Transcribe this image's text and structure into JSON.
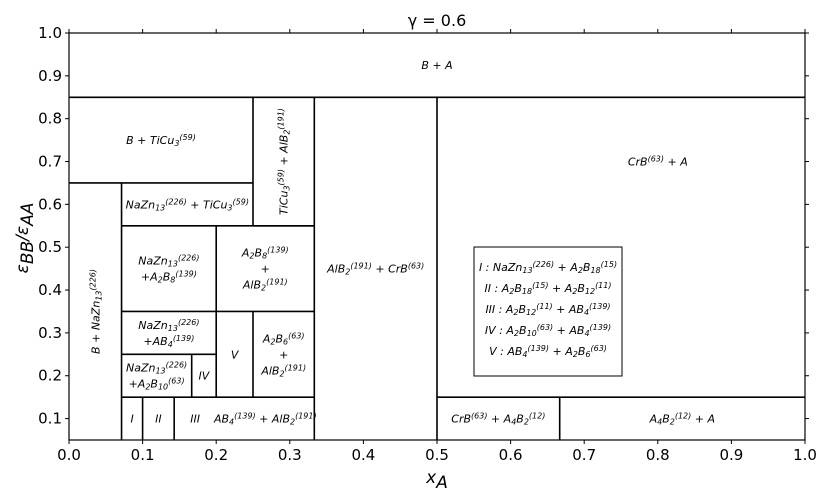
{
  "chart_data": {
    "type": "phase-diagram",
    "title": "γ = 0.6",
    "xlabel": "x_A",
    "ylabel": "ε_BB/ε_AA",
    "xlim": [
      0.0,
      1.0
    ],
    "ylim": [
      0.05,
      1.0
    ],
    "x_ticks": [
      "0.0",
      "0.1",
      "0.2",
      "0.3",
      "0.4",
      "0.5",
      "0.6",
      "0.7",
      "0.8",
      "0.9",
      "1.0"
    ],
    "y_ticks": [
      "0.1",
      "0.2",
      "0.3",
      "0.4",
      "0.5",
      "0.6",
      "0.7",
      "0.8",
      "0.9",
      "1.0"
    ],
    "grid": false,
    "boundaries": [
      {
        "x1": 0.0,
        "y1": 0.85,
        "x2": 1.0,
        "y2": 0.85
      },
      {
        "x1": 0.0,
        "y1": 0.65,
        "x2": 0.25,
        "y2": 0.65
      },
      {
        "x1": 0.25,
        "y1": 0.55,
        "x2": 0.3333,
        "y2": 0.55
      },
      {
        "x1": 0.0714,
        "y1": 0.55,
        "x2": 0.3333,
        "y2": 0.55
      },
      {
        "x1": 0.0714,
        "y1": 0.35,
        "x2": 0.3333,
        "y2": 0.35
      },
      {
        "x1": 0.0714,
        "y1": 0.25,
        "x2": 0.2,
        "y2": 0.25
      },
      {
        "x1": 0.0714,
        "y1": 0.15,
        "x2": 0.3333,
        "y2": 0.15
      },
      {
        "x1": 0.5,
        "y1": 0.15,
        "x2": 1.0,
        "y2": 0.15
      },
      {
        "x1": 0.0714,
        "y1": 0.05,
        "x2": 0.0714,
        "y2": 0.65
      },
      {
        "x1": 0.25,
        "y1": 0.55,
        "x2": 0.25,
        "y2": 0.85
      },
      {
        "x1": 0.3333,
        "y1": 0.05,
        "x2": 0.3333,
        "y2": 0.85
      },
      {
        "x1": 0.5,
        "y1": 0.05,
        "x2": 0.5,
        "y2": 0.85
      },
      {
        "x1": 0.2,
        "y1": 0.15,
        "x2": 0.2,
        "y2": 0.55
      },
      {
        "x1": 0.25,
        "y1": 0.15,
        "x2": 0.25,
        "y2": 0.35
      },
      {
        "x1": 0.1667,
        "y1": 0.15,
        "x2": 0.1667,
        "y2": 0.25
      },
      {
        "x1": 0.1,
        "y1": 0.05,
        "x2": 0.1,
        "y2": 0.15
      },
      {
        "x1": 0.1429,
        "y1": 0.05,
        "x2": 0.1429,
        "y2": 0.15
      },
      {
        "x1": 0.6667,
        "y1": 0.05,
        "x2": 0.6667,
        "y2": 0.15
      }
    ],
    "regions": [
      {
        "id": "r-b-a",
        "x": 0.5,
        "y": 0.925,
        "rotate": false,
        "parts": [
          {
            "t": "B + A"
          }
        ]
      },
      {
        "id": "r-b-ticu3",
        "x": 0.125,
        "y": 0.75,
        "rotate": false,
        "parts": [
          {
            "t": "B + TiCu"
          },
          {
            "t": "3",
            "s": "sub"
          },
          {
            "t": "(59)",
            "s": "sup"
          }
        ]
      },
      {
        "id": "r-ticu3-alb2",
        "x": 0.2917,
        "y": 0.7,
        "rotate": true,
        "parts": [
          {
            "t": "TiCu"
          },
          {
            "t": "3",
            "s": "sub"
          },
          {
            "t": "(59)",
            "s": "sup"
          },
          {
            "t": " + AlB"
          },
          {
            "t": "2",
            "s": "sub"
          },
          {
            "t": "(191)",
            "s": "sup"
          }
        ]
      },
      {
        "id": "r-crb-a",
        "x": 0.8,
        "y": 0.7,
        "rotate": false,
        "parts": [
          {
            "t": "CrB"
          },
          {
            "t": "(63)",
            "s": "sup"
          },
          {
            "t": " + A"
          }
        ]
      },
      {
        "id": "r-nazn13-ticu3",
        "x": 0.1607,
        "y": 0.6,
        "rotate": false,
        "parts": [
          {
            "t": "NaZn"
          },
          {
            "t": "13",
            "s": "sub"
          },
          {
            "t": "(226)",
            "s": "sup"
          },
          {
            "t": " + TiCu"
          },
          {
            "t": "3",
            "s": "sub"
          },
          {
            "t": "(59)",
            "s": "sup"
          }
        ]
      },
      {
        "id": "r-b-nazn13",
        "x": 0.0357,
        "y": 0.35,
        "rotate": true,
        "parts": [
          {
            "t": "B + NaZn"
          },
          {
            "t": "13",
            "s": "sub"
          },
          {
            "t": "(226)",
            "s": "sup"
          }
        ]
      },
      {
        "id": "r-alb2-crb",
        "x": 0.4167,
        "y": 0.45,
        "rotate": false,
        "parts": [
          {
            "t": "AlB"
          },
          {
            "t": "2",
            "s": "sub"
          },
          {
            "t": "(191)",
            "s": "sup"
          },
          {
            "t": " + CrB"
          },
          {
            "t": "(63)",
            "s": "sup"
          }
        ]
      },
      {
        "id": "r-crb-a4b2",
        "x": 0.5833,
        "y": 0.1,
        "rotate": false,
        "parts": [
          {
            "t": "CrB"
          },
          {
            "t": "(63)",
            "s": "sup"
          },
          {
            "t": " + A"
          },
          {
            "t": "4",
            "s": "sub"
          },
          {
            "t": "B"
          },
          {
            "t": "2",
            "s": "sub"
          },
          {
            "t": "(12)",
            "s": "sup"
          }
        ]
      },
      {
        "id": "r-a4b2-a",
        "x": 0.8333,
        "y": 0.1,
        "rotate": false,
        "parts": [
          {
            "t": "A"
          },
          {
            "t": "4",
            "s": "sub"
          },
          {
            "t": "B"
          },
          {
            "t": "2",
            "s": "sub"
          },
          {
            "t": "(12)",
            "s": "sup"
          },
          {
            "t": " + A"
          }
        ]
      },
      {
        "id": "r-ab4-alb2",
        "x": 0.2667,
        "y": 0.1,
        "rotate": false,
        "parts": [
          {
            "t": "AB"
          },
          {
            "t": "4",
            "s": "sub"
          },
          {
            "t": "(139)",
            "s": "sup"
          },
          {
            "t": " + AlB"
          },
          {
            "t": "2",
            "s": "sub"
          },
          {
            "t": "(191)",
            "s": "sup"
          }
        ]
      },
      {
        "id": "r-i",
        "x": 0.0857,
        "y": 0.1,
        "rotate": false,
        "parts": [
          {
            "t": "I"
          }
        ]
      },
      {
        "id": "r-ii",
        "x": 0.1214,
        "y": 0.1,
        "rotate": false,
        "parts": [
          {
            "t": "II"
          }
        ]
      },
      {
        "id": "r-iii",
        "x": 0.1714,
        "y": 0.1,
        "rotate": false,
        "parts": [
          {
            "t": "III"
          }
        ]
      },
      {
        "id": "r-iv",
        "x": 0.1833,
        "y": 0.2,
        "rotate": false,
        "parts": [
          {
            "t": "IV"
          }
        ]
      },
      {
        "id": "r-v",
        "x": 0.225,
        "y": 0.25,
        "rotate": false,
        "parts": [
          {
            "t": "V"
          }
        ]
      }
    ],
    "stacked_regions": [
      {
        "id": "r-nazn13-a2b8",
        "x": 0.1357,
        "y": 0.45,
        "lines": [
          [
            {
              "t": "NaZn"
            },
            {
              "t": "13",
              "s": "sub"
            },
            {
              "t": "(226)",
              "s": "sup"
            }
          ],
          [
            {
              "t": "+A"
            },
            {
              "t": "2",
              "s": "sub"
            },
            {
              "t": "B"
            },
            {
              "t": "8",
              "s": "sub"
            },
            {
              "t": "(139)",
              "s": "sup"
            }
          ]
        ]
      },
      {
        "id": "r-a2b8-alb2",
        "x": 0.2667,
        "y": 0.45,
        "lines": [
          [
            {
              "t": "A"
            },
            {
              "t": "2",
              "s": "sub"
            },
            {
              "t": "B"
            },
            {
              "t": "8",
              "s": "sub"
            },
            {
              "t": "(139)",
              "s": "sup"
            }
          ],
          [
            {
              "t": "+"
            }
          ],
          [
            {
              "t": "AlB"
            },
            {
              "t": "2",
              "s": "sub"
            },
            {
              "t": "(191)",
              "s": "sup"
            }
          ]
        ]
      },
      {
        "id": "r-nazn13-ab4",
        "x": 0.1357,
        "y": 0.3,
        "lines": [
          [
            {
              "t": "NaZn"
            },
            {
              "t": "13",
              "s": "sub"
            },
            {
              "t": "(226)",
              "s": "sup"
            }
          ],
          [
            {
              "t": "+AB"
            },
            {
              "t": "4",
              "s": "sub"
            },
            {
              "t": "(139)",
              "s": "sup"
            }
          ]
        ]
      },
      {
        "id": "r-nazn13-a2b10",
        "x": 0.119,
        "y": 0.2,
        "lines": [
          [
            {
              "t": "NaZn"
            },
            {
              "t": "13",
              "s": "sub"
            },
            {
              "t": "(226)",
              "s": "sup"
            }
          ],
          [
            {
              "t": "+A"
            },
            {
              "t": "2",
              "s": "sub"
            },
            {
              "t": "B"
            },
            {
              "t": "10",
              "s": "sub"
            },
            {
              "t": "(63)",
              "s": "sup"
            }
          ]
        ]
      },
      {
        "id": "r-a2b6-alb2",
        "x": 0.2917,
        "y": 0.25,
        "lines": [
          [
            {
              "t": "A"
            },
            {
              "t": "2",
              "s": "sub"
            },
            {
              "t": "B"
            },
            {
              "t": "6",
              "s": "sub"
            },
            {
              "t": "(63)",
              "s": "sup"
            }
          ],
          [
            {
              "t": "+"
            }
          ],
          [
            {
              "t": "AlB"
            },
            {
              "t": "2",
              "s": "sub"
            },
            {
              "t": "(191)",
              "s": "sup"
            }
          ]
        ]
      }
    ],
    "legend": {
      "placement": "center-right",
      "lines": [
        [
          {
            "t": "I : NaZn"
          },
          {
            "t": "13",
            "s": "sub"
          },
          {
            "t": "(226)",
            "s": "sup"
          },
          {
            "t": " + A"
          },
          {
            "t": "2",
            "s": "sub"
          },
          {
            "t": "B"
          },
          {
            "t": "18",
            "s": "sub"
          },
          {
            "t": "(15)",
            "s": "sup"
          }
        ],
        [
          {
            "t": "II : A"
          },
          {
            "t": "2",
            "s": "sub"
          },
          {
            "t": "B"
          },
          {
            "t": "18",
            "s": "sub"
          },
          {
            "t": "(15)",
            "s": "sup"
          },
          {
            "t": " + A"
          },
          {
            "t": "2",
            "s": "sub"
          },
          {
            "t": "B"
          },
          {
            "t": "12",
            "s": "sub"
          },
          {
            "t": "(11)",
            "s": "sup"
          }
        ],
        [
          {
            "t": "III : A"
          },
          {
            "t": "2",
            "s": "sub"
          },
          {
            "t": "B"
          },
          {
            "t": "12",
            "s": "sub"
          },
          {
            "t": "(11)",
            "s": "sup"
          },
          {
            "t": " + AB"
          },
          {
            "t": "4",
            "s": "sub"
          },
          {
            "t": "(139)",
            "s": "sup"
          }
        ],
        [
          {
            "t": "IV : A"
          },
          {
            "t": "2",
            "s": "sub"
          },
          {
            "t": "B"
          },
          {
            "t": "10",
            "s": "sub"
          },
          {
            "t": "(63)",
            "s": "sup"
          },
          {
            "t": " + AB"
          },
          {
            "t": "4",
            "s": "sub"
          },
          {
            "t": "(139)",
            "s": "sup"
          }
        ],
        [
          {
            "t": "V : AB"
          },
          {
            "t": "4",
            "s": "sub"
          },
          {
            "t": "(139)",
            "s": "sup"
          },
          {
            "t": " + A"
          },
          {
            "t": "2",
            "s": "sub"
          },
          {
            "t": "B"
          },
          {
            "t": "6",
            "s": "sub"
          },
          {
            "t": "(63)",
            "s": "sup"
          }
        ]
      ]
    },
    "colors": {
      "lines": "#000000",
      "background": "#ffffff"
    }
  }
}
